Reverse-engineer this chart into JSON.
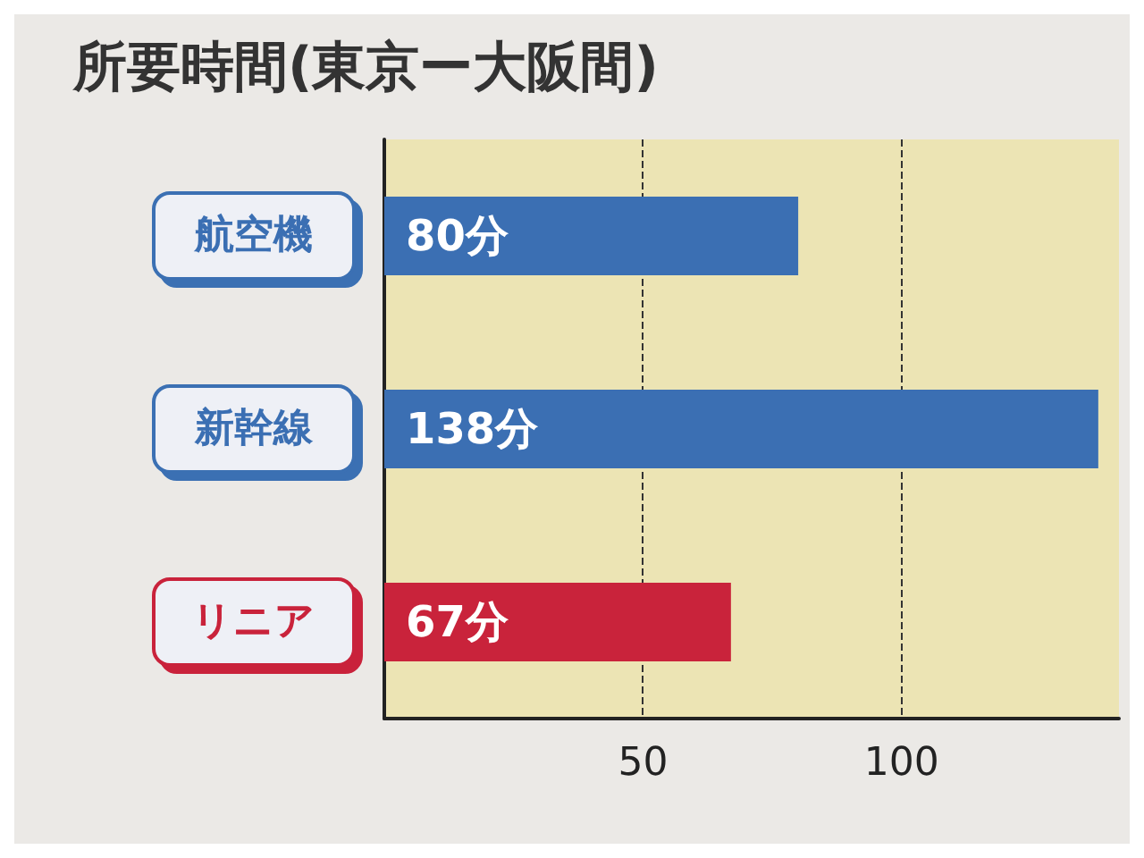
{
  "chart_data": {
    "type": "bar",
    "orientation": "horizontal",
    "title": "所要時間(東京ー大阪間)",
    "categories": [
      "航空機",
      "新幹線",
      "リニア"
    ],
    "values": [
      80,
      138,
      67
    ],
    "colors": [
      "#3b6fb3",
      "#3b6fb3",
      "#c9233b"
    ],
    "value_labels": [
      "80分",
      "138分",
      "67分"
    ],
    "xlim": [
      0,
      142
    ],
    "xticks": [
      {
        "value": 0,
        "label": null
      },
      50,
      100
    ],
    "grid": "x"
  }
}
